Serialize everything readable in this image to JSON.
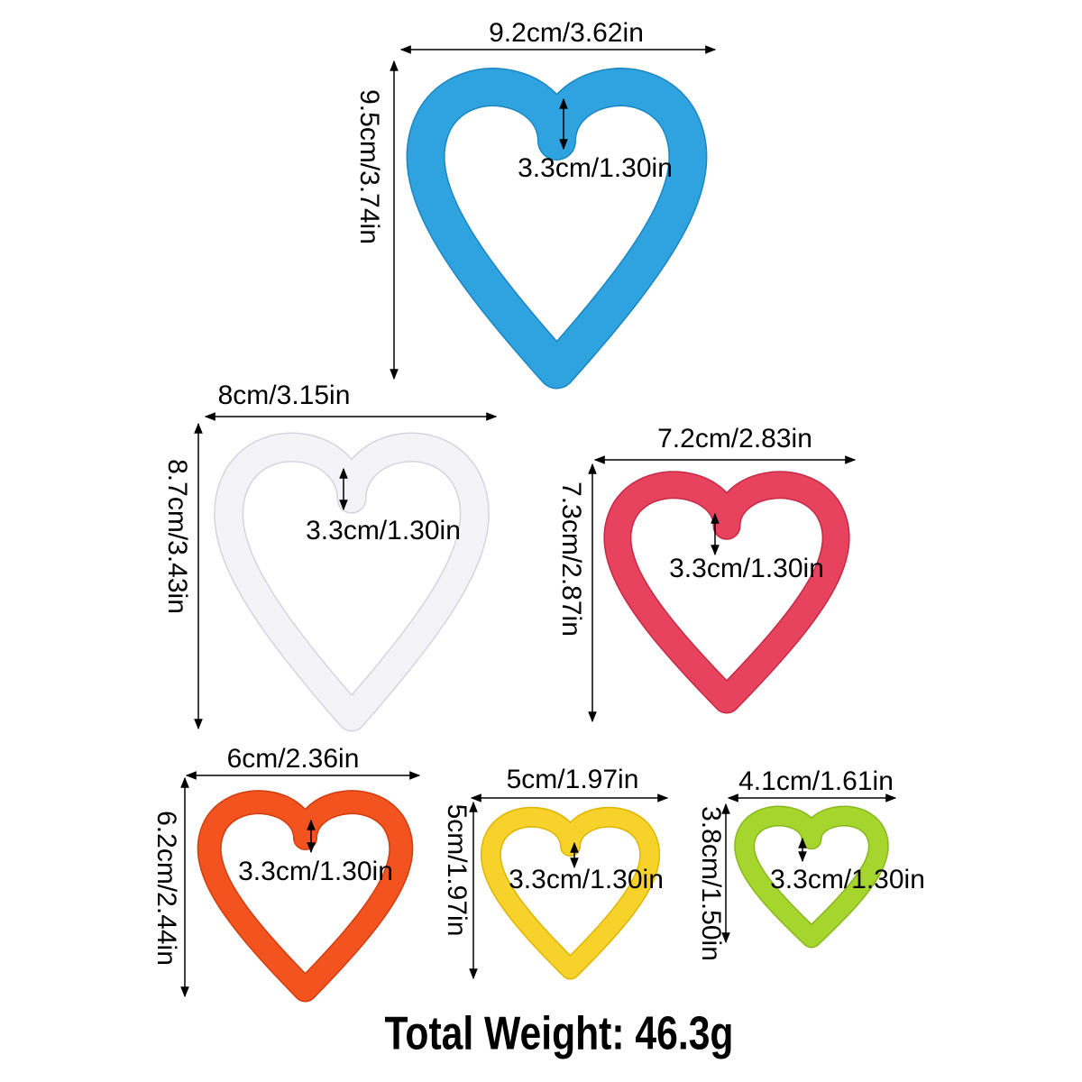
{
  "items": [
    {
      "width": "9.2cm/3.62in",
      "height": "9.5cm/3.74in",
      "depth": "3.3cm/1.30in"
    },
    {
      "width": "8cm/3.15in",
      "height": "8.7cm/3.43in",
      "depth": "3.3cm/1.30in"
    },
    {
      "width": "7.2cm/2.83in",
      "height": "7.3cm/2.87in",
      "depth": "3.3cm/1.30in"
    },
    {
      "width": "6cm/2.36in",
      "height": "6.2cm/2.44in",
      "depth": "3.3cm/1.30in"
    },
    {
      "width": "5cm/1.97in",
      "height": "5cm/1.97in",
      "depth": "3.3cm/1.30in"
    },
    {
      "width": "4.1cm/1.61in",
      "height": "3.8cm/1.50in",
      "depth": "3.3cm/1.30in"
    }
  ],
  "footer": {
    "title": "Total Weight: 46.3g"
  }
}
